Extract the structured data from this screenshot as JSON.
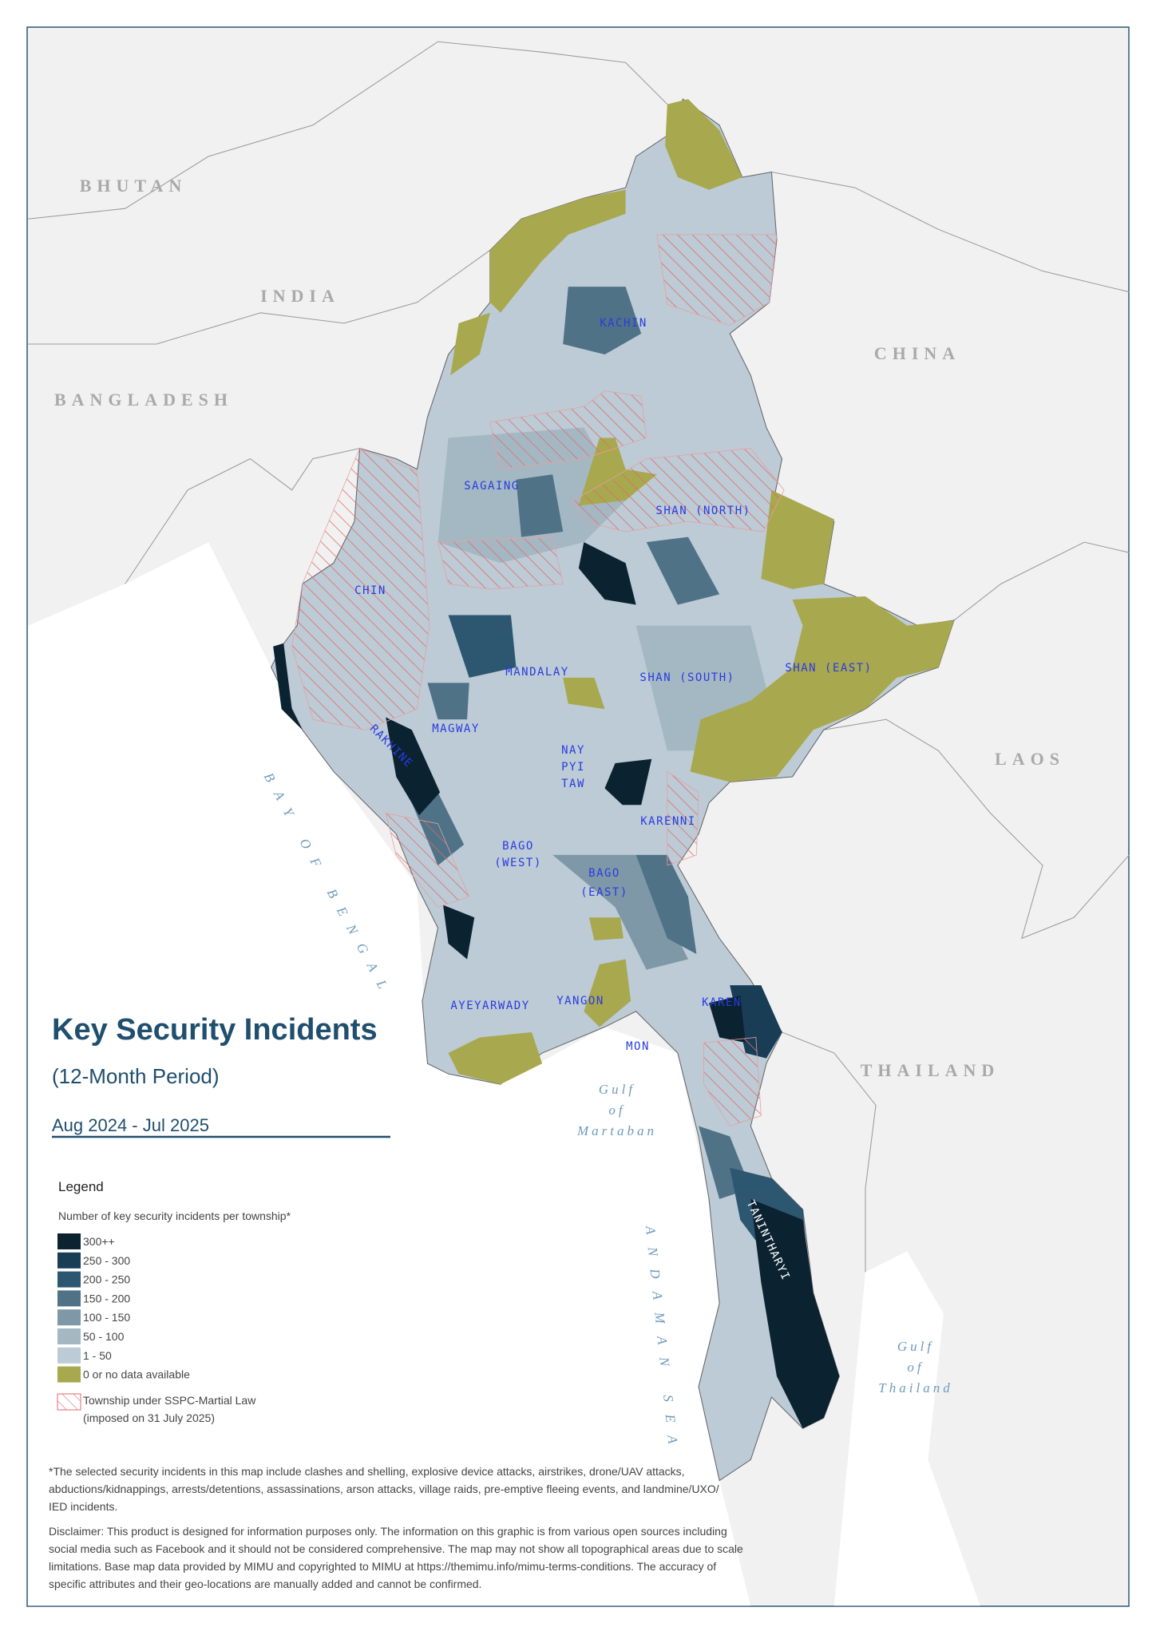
{
  "title": "Key Security Incidents",
  "subtitle": "(12-Month Period)",
  "period": "Aug 2024 - Jul 2025",
  "countries": [
    "BHUTAN",
    "INDIA",
    "BANGLADESH",
    "CHINA",
    "LAOS",
    "THAILAND"
  ],
  "regions": {
    "kachin": "KACHIN",
    "sagaing": "SAGAING",
    "shan_north": "SHAN (NORTH)",
    "chin": "CHIN",
    "mandalay": "MANDALAY",
    "shan_south": "SHAN (SOUTH)",
    "shan_east": "SHAN (EAST)",
    "magway": "MAGWAY",
    "rakhine": "RAKHINE",
    "nay_pyi_taw": [
      "NAY",
      "PYI",
      "TAW"
    ],
    "karenni": "KARENNI",
    "bago_west": [
      "BAGO",
      "(WEST)"
    ],
    "bago_east": [
      "BAGO",
      "(EAST)"
    ],
    "ayeyarwady": "AYEYARWADY",
    "yangon": "YANGON",
    "karen": "KAREN",
    "mon": "MON",
    "tanintharyi": "TANINTHARYI"
  },
  "water": {
    "bay_of_bengal": "BAY OF BENGAL",
    "gulf_of_martaban": [
      "Gulf",
      "of",
      "Martaban"
    ],
    "andaman_sea": "ANDAMAN SEA",
    "gulf_of_thailand": [
      "Gulf",
      "of",
      "Thailand"
    ]
  },
  "legend": {
    "title": "Legend",
    "subtitle": "Number of key security incidents per township*",
    "items": [
      {
        "label": "300++",
        "color": "#0b2231"
      },
      {
        "label": "250 - 300",
        "color": "#183d55"
      },
      {
        "label": "200 - 250",
        "color": "#2d5670"
      },
      {
        "label": "150 - 200",
        "color": "#4f7286"
      },
      {
        "label": "100 - 150",
        "color": "#7e98a7"
      },
      {
        "label": "50 - 100",
        "color": "#a4b8c4"
      },
      {
        "label": "1 - 50",
        "color": "#bccbd5"
      },
      {
        "label": "0 or no data available",
        "color": "#a8a84e"
      }
    ],
    "martial_law": [
      "Township under SSPC-Martial Law",
      "(imposed on 31 July 2025)"
    ]
  },
  "footnote": [
    "*The selected security incidents in this map include clashes and shelling, explosive device attacks, airstrikes, drone/UAV attacks,",
    "abductions/kidnappings, arrests/detentions, assassinations, arson attacks, village raids, pre-emptive fleeing events, and landmine/UXO/",
    "IED incidents."
  ],
  "disclaimer": [
    "Disclaimer: This product is designed for information purposes only. The information on this graphic is from various open sources including",
    "social media such as Facebook and it should not be considered comprehensive. The map may not show all topographical areas due to scale",
    "limitations. Base map data provided by MIMU and copyrighted to MIMU at https://themimu.info/mimu-terms-conditions. The accuracy of",
    "specific attributes and their geo-locations are manually added and cannot be confirmed."
  ]
}
